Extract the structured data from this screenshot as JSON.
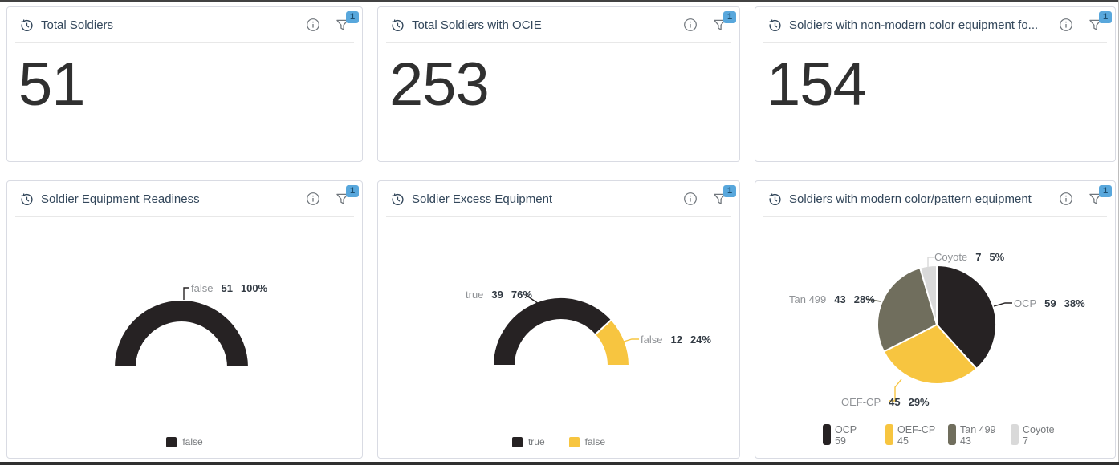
{
  "page": {
    "background": "#ffffff",
    "frame_color": "#3b3b3b",
    "card_border_color": "#d9dbe3",
    "title_color": "#33475b",
    "badge_bg": "#58a7dc",
    "badge_text_color": "#1c4e70"
  },
  "icons": {
    "card_left": "history-clock-icon",
    "card_info": "info-icon",
    "card_filter": "filter-funnel-icon"
  },
  "cards": [
    {
      "title": "Total Soldiers",
      "type": "metric",
      "value": "51",
      "filter_count": "1"
    },
    {
      "title": "Total Soldiers with OCIE",
      "type": "metric",
      "value": "253",
      "filter_count": "1"
    },
    {
      "title": "Soldiers with non-modern color equipment fo...",
      "type": "metric",
      "value": "154",
      "filter_count": "1"
    },
    {
      "title": "Soldier Equipment Readiness",
      "type": "chart",
      "filter_count": "1",
      "chart_data": {
        "type": "donut",
        "shape": "half-donut",
        "legend_position": "bottom",
        "slices": [
          {
            "name": "false",
            "value": 51,
            "pct": "100%",
            "color": "#262223"
          }
        ]
      }
    },
    {
      "title": "Soldier Excess Equipment",
      "type": "chart",
      "filter_count": "1",
      "chart_data": {
        "type": "donut",
        "shape": "half-donut",
        "legend_position": "bottom",
        "slices": [
          {
            "name": "true",
            "value": 39,
            "pct": "76%",
            "color": "#262223"
          },
          {
            "name": "false",
            "value": 12,
            "pct": "24%",
            "color": "#f7c540"
          }
        ]
      }
    },
    {
      "title": "Soldiers with modern color/pattern equipment",
      "type": "chart",
      "filter_count": "1",
      "chart_data": {
        "type": "pie",
        "shape": "pie",
        "legend_position": "bottom",
        "slices": [
          {
            "name": "OCP",
            "value": 59,
            "pct": "38%",
            "color": "#262223"
          },
          {
            "name": "OEF-CP",
            "value": 45,
            "pct": "29%",
            "color": "#f7c540"
          },
          {
            "name": "Tan 499",
            "value": 43,
            "pct": "28%",
            "color": "#706e5d"
          },
          {
            "name": "Coyote",
            "value": 7,
            "pct": "5%",
            "color": "#d9d9d9"
          }
        ]
      }
    }
  ]
}
